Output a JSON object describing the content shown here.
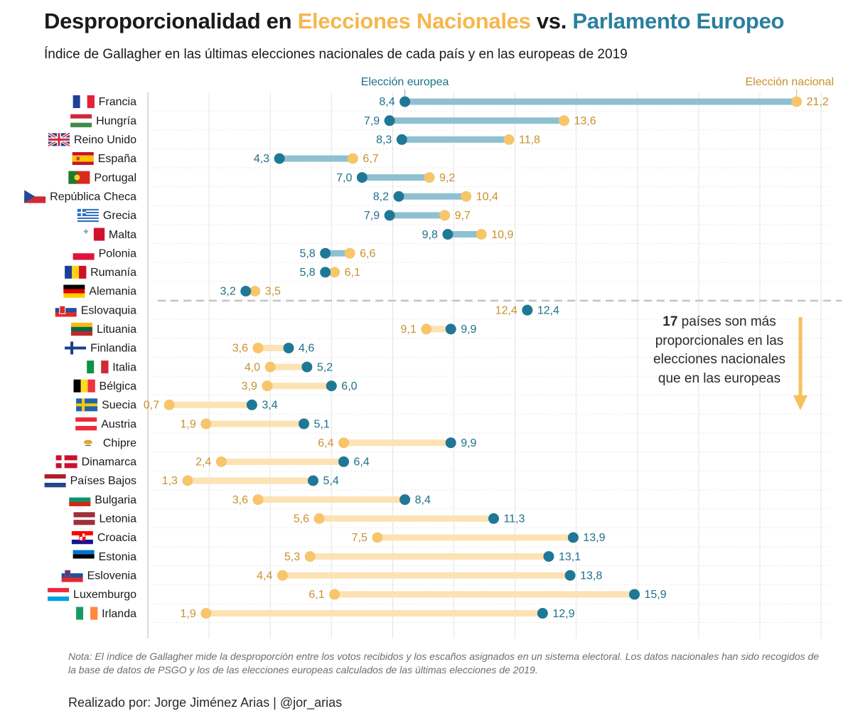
{
  "header": {
    "title_part1": "Desproporcionalidad en ",
    "title_national": "Elecciones Nacionales",
    "title_part2": " vs. ",
    "title_european": "Parlamento Europeo",
    "subtitle": "Índice de Gallagher en las últimas elecciones nacionales de cada país y en las europeas de 2019"
  },
  "colors": {
    "national": "#f7c56a",
    "european": "#1e7896",
    "national_text": "#c9902e",
    "european_text": "#1e6f8c",
    "bar_more_disproportional_national": "#8fc0d2",
    "bar_more_disproportional_european": "#fde2b3"
  },
  "annotation": {
    "count": "17",
    "text": "países son más proporcionales en las elecciones nacionales que en las europeas"
  },
  "footer": {
    "note": "Nota: El índice de Gallagher mide la desproporción entre los votos recibidos y los escaños asignados en un sistema electoral. Los datos nacionales han sido recogidos de la base de datos de PSGO y los de las elecciones europeas calculados de las últimas elecciones de 2019.",
    "credit": "Realizado por: Jorge Jiménez Arias | @jor_arias"
  },
  "chart_data": {
    "type": "dumbbell",
    "xlim": [
      0,
      22
    ],
    "x_gridlines": [
      0,
      2,
      4,
      6,
      8,
      10,
      12,
      14,
      16,
      18,
      20,
      22
    ],
    "grid": true,
    "series_labels": {
      "european": "Elección europea",
      "national": "Elección nacional"
    },
    "divider_after_index": 10,
    "countries": [
      {
        "name": "Francia",
        "flag": "fr",
        "european": 8.4,
        "national": 21.2,
        "european_label": "8,4",
        "national_label": "21,2"
      },
      {
        "name": "Hungría",
        "flag": "hu",
        "european": 7.9,
        "national": 13.6,
        "european_label": "7,9",
        "national_label": "13,6"
      },
      {
        "name": "Reino Unido",
        "flag": "gb",
        "european": 8.3,
        "national": 11.8,
        "european_label": "8,3",
        "national_label": "11,8"
      },
      {
        "name": "España",
        "flag": "es",
        "european": 4.3,
        "national": 6.7,
        "european_label": "4,3",
        "national_label": "6,7"
      },
      {
        "name": "Portugal",
        "flag": "pt",
        "european": 7.0,
        "national": 9.2,
        "european_label": "7,0",
        "national_label": "9,2"
      },
      {
        "name": "República Checa",
        "flag": "cz",
        "european": 8.2,
        "national": 10.4,
        "european_label": "8,2",
        "national_label": "10,4"
      },
      {
        "name": "Grecia",
        "flag": "gr",
        "european": 7.9,
        "national": 9.7,
        "european_label": "7,9",
        "national_label": "9,7"
      },
      {
        "name": "Malta",
        "flag": "mt",
        "european": 9.8,
        "national": 10.9,
        "european_label": "9,8",
        "national_label": "10,9"
      },
      {
        "name": "Polonia",
        "flag": "pl",
        "european": 5.8,
        "national": 6.6,
        "european_label": "5,8",
        "national_label": "6,6"
      },
      {
        "name": "Rumanía",
        "flag": "ro",
        "european": 5.8,
        "national": 6.1,
        "european_label": "5,8",
        "national_label": "6,1"
      },
      {
        "name": "Alemania",
        "flag": "de",
        "european": 3.2,
        "national": 3.5,
        "european_label": "3,2",
        "national_label": "3,5"
      },
      {
        "name": "Eslovaquia",
        "flag": "sk",
        "european": 12.4,
        "national": 12.4,
        "european_label": "12,4",
        "national_label": "12,4"
      },
      {
        "name": "Lituania",
        "flag": "lt",
        "european": 9.9,
        "national": 9.1,
        "european_label": "9,9",
        "national_label": "9,1"
      },
      {
        "name": "Finlandia",
        "flag": "fi",
        "european": 4.6,
        "national": 3.6,
        "european_label": "4,6",
        "national_label": "3,6"
      },
      {
        "name": "Italia",
        "flag": "it",
        "european": 5.2,
        "national": 4.0,
        "european_label": "5,2",
        "national_label": "4,0"
      },
      {
        "name": "Bélgica",
        "flag": "be",
        "european": 6.0,
        "national": 3.9,
        "european_label": "6,0",
        "national_label": "3,9"
      },
      {
        "name": "Suecia",
        "flag": "se",
        "european": 3.4,
        "national": 0.7,
        "european_label": "3,4",
        "national_label": "0,7"
      },
      {
        "name": "Austria",
        "flag": "at",
        "european": 5.1,
        "national": 1.9,
        "european_label": "5,1",
        "national_label": "1,9"
      },
      {
        "name": "Chipre",
        "flag": "cy",
        "european": 9.9,
        "national": 6.4,
        "european_label": "9,9",
        "national_label": "6,4"
      },
      {
        "name": "Dinamarca",
        "flag": "dk",
        "european": 6.4,
        "national": 2.4,
        "european_label": "6,4",
        "national_label": "2,4"
      },
      {
        "name": "Países Bajos",
        "flag": "nl",
        "european": 5.4,
        "national": 1.3,
        "european_label": "5,4",
        "national_label": "1,3"
      },
      {
        "name": "Bulgaria",
        "flag": "bg",
        "european": 8.4,
        "national": 3.6,
        "european_label": "8,4",
        "national_label": "3,6"
      },
      {
        "name": "Letonia",
        "flag": "lv",
        "european": 11.3,
        "national": 5.6,
        "european_label": "11,3",
        "national_label": "5,6"
      },
      {
        "name": "Croacia",
        "flag": "hr",
        "european": 13.9,
        "national": 7.5,
        "european_label": "13,9",
        "national_label": "7,5"
      },
      {
        "name": "Estonia",
        "flag": "ee",
        "european": 13.1,
        "national": 5.3,
        "european_label": "13,1",
        "national_label": "5,3"
      },
      {
        "name": "Eslovenia",
        "flag": "si",
        "european": 13.8,
        "national": 4.4,
        "european_label": "13,8",
        "national_label": "4,4"
      },
      {
        "name": "Luxemburgo",
        "flag": "lu",
        "european": 15.9,
        "national": 6.1,
        "european_label": "15,9",
        "national_label": "6,1"
      },
      {
        "name": "Irlanda",
        "flag": "ie",
        "european": 12.9,
        "national": 1.9,
        "european_label": "12,9",
        "national_label": "1,9"
      }
    ]
  }
}
